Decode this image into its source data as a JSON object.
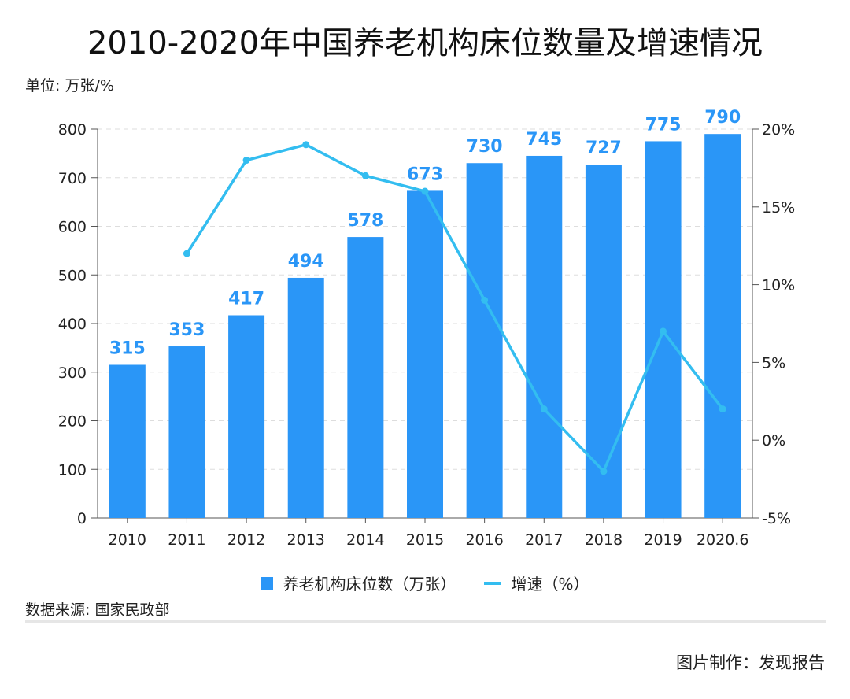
{
  "title": "2010-2020年中国养老机构床位数量及增速情况",
  "unit_label": "单位: 万张/%",
  "source": "数据来源: 国家民政部",
  "credit": "图片制作：发现报告",
  "colors": {
    "bar": "#2a96f7",
    "line": "#33bdf0",
    "label": "#2a96f7",
    "grid": "#dddddd"
  },
  "chart_data": {
    "type": "bar",
    "categories": [
      "2010",
      "2011",
      "2012",
      "2013",
      "2014",
      "2015",
      "2016",
      "2017",
      "2018",
      "2019",
      "2020.6"
    ],
    "series": [
      {
        "name": "养老机构床位数（万张）",
        "type": "bar",
        "axis": "left",
        "values": [
          315,
          353,
          417,
          494,
          578,
          673,
          730,
          745,
          727,
          775,
          790
        ]
      },
      {
        "name": "增速（%）",
        "type": "line",
        "axis": "right",
        "values": [
          null,
          12,
          18,
          19,
          17,
          16,
          9,
          2,
          -2,
          7,
          2
        ]
      }
    ],
    "y_left": {
      "range": [
        0,
        800
      ],
      "ticks": [
        "0",
        "100",
        "200",
        "300",
        "400",
        "500",
        "600",
        "700",
        "800"
      ]
    },
    "y_right": {
      "range": [
        -5,
        20
      ],
      "ticks": [
        "-5%",
        "0%",
        "5%",
        "10%",
        "15%",
        "20%"
      ]
    },
    "grid": true,
    "legend_position": "bottom-center"
  }
}
